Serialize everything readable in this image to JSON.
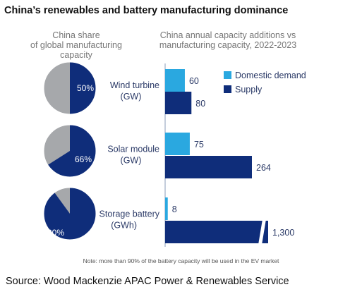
{
  "title": "China’s renewables and battery manufacturing dominance",
  "pie_header": [
    "China share",
    "of global manufacturing",
    "capacity"
  ],
  "bar_header": [
    "China annual capacity additions vs",
    "manufacturing capacity, 2022-2023"
  ],
  "note": "Note: more than 90% of the battery capacity will be used in the EV market",
  "source": "Source: Wood Mackenzie APAC Power & Renewables Service",
  "colors": {
    "domestic_demand": "#2aa8e0",
    "supply": "#0f2d7a",
    "pie_rest": "#a6a8ab",
    "label_light": "#ffffff",
    "label_dark": "#2b3a67"
  },
  "chart_data": [
    {
      "type": "pie",
      "charts": [
        {
          "category": "Wind turbine (GW)",
          "share": 50,
          "label": "50%"
        },
        {
          "category": "Solar module (GW)",
          "share": 66,
          "label": "66%"
        },
        {
          "category": "Storage battery (GWh)",
          "share": 90,
          "label": "90%"
        }
      ]
    },
    {
      "type": "bar",
      "orientation": "horizontal",
      "categories": [
        [
          "Wind turbine",
          "(GW)"
        ],
        [
          "Solar module",
          "(GW)"
        ],
        [
          "Storage battery",
          "(GWh)"
        ]
      ],
      "series": [
        {
          "name": "Domestic demand",
          "values": [
            60,
            75,
            8
          ],
          "labels": [
            "60",
            "75",
            "8"
          ]
        },
        {
          "name": "Supply",
          "values": [
            80,
            264,
            1300
          ],
          "labels": [
            "80",
            "264",
            "1,300"
          ]
        }
      ],
      "axis_break": {
        "category_index": 2,
        "series_index": 1
      },
      "legend": "top-right",
      "grid": false
    }
  ]
}
